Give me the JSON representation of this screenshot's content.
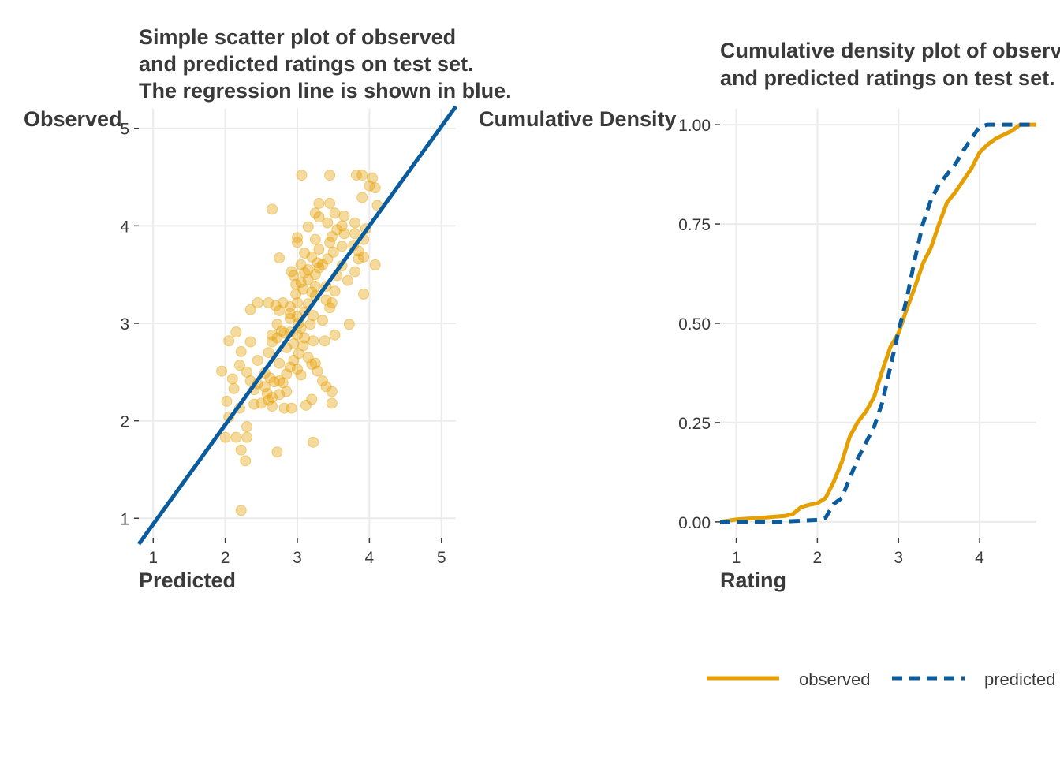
{
  "chart_data": [
    {
      "type": "scatter",
      "title_lines": [
        "Simple scatter plot of observed",
        "and predicted ratings on test set.",
        "The regression line is shown in blue."
      ],
      "xlabel": "Predicted",
      "ylabel": "Observed",
      "xlim": [
        0.8,
        5.2
      ],
      "ylim": [
        0.8,
        5.2
      ],
      "x_ticks": [
        1,
        2,
        3,
        4,
        5
      ],
      "y_ticks": [
        1,
        2,
        3,
        4,
        5
      ],
      "x_tick_labels": [
        "1",
        "2",
        "3",
        "4",
        "5"
      ],
      "y_tick_labels": [
        "1",
        "2",
        "3",
        "4",
        "5"
      ],
      "grid": true,
      "point_color": "#E69F00",
      "regression_color": "#0B5C9E",
      "regression_line": {
        "intercept": -0.08,
        "slope": 1.02
      },
      "points": [
        [
          3.06,
          4.52
        ],
        [
          3.45,
          4.52
        ],
        [
          3.82,
          4.52
        ],
        [
          3.9,
          4.52
        ],
        [
          4.04,
          4.49
        ],
        [
          4.0,
          4.41
        ],
        [
          4.08,
          4.39
        ],
        [
          3.3,
          4.23
        ],
        [
          3.45,
          4.23
        ],
        [
          3.9,
          4.29
        ],
        [
          2.65,
          4.17
        ],
        [
          4.11,
          4.21
        ],
        [
          3.25,
          4.13
        ],
        [
          3.52,
          4.13
        ],
        [
          3.65,
          4.1
        ],
        [
          3.3,
          4.09
        ],
        [
          3.62,
          4.0
        ],
        [
          3.42,
          4.03
        ],
        [
          3.8,
          4.03
        ],
        [
          3.15,
          3.99
        ],
        [
          3.95,
          3.97
        ],
        [
          3.55,
          3.96
        ],
        [
          3.0,
          3.88
        ],
        [
          3.65,
          3.92
        ],
        [
          3.8,
          3.92
        ],
        [
          3.48,
          3.89
        ],
        [
          3.25,
          3.86
        ],
        [
          3.0,
          3.83
        ],
        [
          3.92,
          3.86
        ],
        [
          3.45,
          3.83
        ],
        [
          3.62,
          3.79
        ],
        [
          3.3,
          3.76
        ],
        [
          3.78,
          3.8
        ],
        [
          3.1,
          3.72
        ],
        [
          3.5,
          3.73
        ],
        [
          3.85,
          3.74
        ],
        [
          2.75,
          3.67
        ],
        [
          3.2,
          3.68
        ],
        [
          3.42,
          3.66
        ],
        [
          3.85,
          3.66
        ],
        [
          3.92,
          3.68
        ],
        [
          3.28,
          3.62
        ],
        [
          3.05,
          3.6
        ],
        [
          3.62,
          3.59
        ],
        [
          4.08,
          3.6
        ],
        [
          3.35,
          3.6
        ],
        [
          3.3,
          3.57
        ],
        [
          3.15,
          3.55
        ],
        [
          3.1,
          3.52
        ],
        [
          2.92,
          3.53
        ],
        [
          3.8,
          3.53
        ],
        [
          3.25,
          3.5
        ],
        [
          2.95,
          3.49
        ],
        [
          3.55,
          3.49
        ],
        [
          3.15,
          3.45
        ],
        [
          3.05,
          3.42
        ],
        [
          3.7,
          3.44
        ],
        [
          2.98,
          3.4
        ],
        [
          3.25,
          3.38
        ],
        [
          3.4,
          3.38
        ],
        [
          3.08,
          3.35
        ],
        [
          3.2,
          3.32
        ],
        [
          3.52,
          3.33
        ],
        [
          3.92,
          3.3
        ],
        [
          2.98,
          3.3
        ],
        [
          3.25,
          3.28
        ],
        [
          3.4,
          3.24
        ],
        [
          2.45,
          3.21
        ],
        [
          2.6,
          3.21
        ],
        [
          2.8,
          3.21
        ],
        [
          3.0,
          3.21
        ],
        [
          3.15,
          3.2
        ],
        [
          3.48,
          3.21
        ],
        [
          2.7,
          3.18
        ],
        [
          2.9,
          3.17
        ],
        [
          3.45,
          3.16
        ],
        [
          2.35,
          3.14
        ],
        [
          2.75,
          3.13
        ],
        [
          3.1,
          3.12
        ],
        [
          2.9,
          3.1
        ],
        [
          3.22,
          3.08
        ],
        [
          3.0,
          3.07
        ],
        [
          2.9,
          3.05
        ],
        [
          3.35,
          3.03
        ],
        [
          3.02,
          3.0
        ],
        [
          2.72,
          2.99
        ],
        [
          3.18,
          2.99
        ],
        [
          3.72,
          2.99
        ],
        [
          3.05,
          2.95
        ],
        [
          2.78,
          2.92
        ],
        [
          2.15,
          2.91
        ],
        [
          2.9,
          2.91
        ],
        [
          2.82,
          2.9
        ],
        [
          2.65,
          2.88
        ],
        [
          3.0,
          2.88
        ],
        [
          3.52,
          2.88
        ],
        [
          2.72,
          2.85
        ],
        [
          3.1,
          2.85
        ],
        [
          2.05,
          2.82
        ],
        [
          2.35,
          2.81
        ],
        [
          2.65,
          2.81
        ],
        [
          3.22,
          2.82
        ],
        [
          3.38,
          2.82
        ],
        [
          2.95,
          2.79
        ],
        [
          3.08,
          2.77
        ],
        [
          2.85,
          2.75
        ],
        [
          2.22,
          2.71
        ],
        [
          2.6,
          2.7
        ],
        [
          3.02,
          2.69
        ],
        [
          3.15,
          2.65
        ],
        [
          2.45,
          2.62
        ],
        [
          2.95,
          2.62
        ],
        [
          2.75,
          2.59
        ],
        [
          3.2,
          2.58
        ],
        [
          3.25,
          2.59
        ],
        [
          2.2,
          2.57
        ],
        [
          2.9,
          2.55
        ],
        [
          3.0,
          2.53
        ],
        [
          3.28,
          2.51
        ],
        [
          1.95,
          2.51
        ],
        [
          2.3,
          2.5
        ],
        [
          2.55,
          2.49
        ],
        [
          2.85,
          2.48
        ],
        [
          3.05,
          2.47
        ],
        [
          2.62,
          2.44
        ],
        [
          2.1,
          2.43
        ],
        [
          2.35,
          2.41
        ],
        [
          2.75,
          2.41
        ],
        [
          3.35,
          2.41
        ],
        [
          2.68,
          2.4
        ],
        [
          2.8,
          2.39
        ],
        [
          2.45,
          2.38
        ],
        [
          2.55,
          2.35
        ],
        [
          3.4,
          2.35
        ],
        [
          2.12,
          2.33
        ],
        [
          2.4,
          2.32
        ],
        [
          2.85,
          2.3
        ],
        [
          3.48,
          2.3
        ],
        [
          2.58,
          2.28
        ],
        [
          2.75,
          2.27
        ],
        [
          2.65,
          2.24
        ],
        [
          3.2,
          2.22
        ],
        [
          2.6,
          2.21
        ],
        [
          2.02,
          2.2
        ],
        [
          2.5,
          2.18
        ],
        [
          3.48,
          2.18
        ],
        [
          2.4,
          2.17
        ],
        [
          3.12,
          2.16
        ],
        [
          2.65,
          2.15
        ],
        [
          2.2,
          2.13
        ],
        [
          2.82,
          2.13
        ],
        [
          2.92,
          2.13
        ],
        [
          2.05,
          2.04
        ],
        [
          2.3,
          1.94
        ],
        [
          2.0,
          1.83
        ],
        [
          2.15,
          1.83
        ],
        [
          2.3,
          1.83
        ],
        [
          3.22,
          1.78
        ],
        [
          2.22,
          1.7
        ],
        [
          2.72,
          1.68
        ],
        [
          2.28,
          1.59
        ],
        [
          2.22,
          1.08
        ]
      ]
    },
    {
      "type": "line",
      "title_lines": [
        "Cumulative density plot of observ",
        "and predicted ratings on test set."
      ],
      "xlabel": "Rating",
      "ylabel": "Cumulative Density",
      "xlim": [
        0.8,
        4.7
      ],
      "ylim": [
        -0.04,
        1.04
      ],
      "x_ticks": [
        1,
        2,
        3,
        4
      ],
      "x_tick_labels": [
        "1",
        "2",
        "3",
        "4"
      ],
      "y_ticks": [
        0,
        0.25,
        0.5,
        0.75,
        1
      ],
      "y_tick_labels": [
        "0.00",
        "0.25",
        "0.50",
        "0.75",
        "1.00"
      ],
      "grid": true,
      "legend_position": "bottom",
      "series": [
        {
          "name": "observed",
          "color": "#E69F00",
          "dash": "solid",
          "x": [
            0.8,
            1.0,
            1.3,
            1.6,
            1.7,
            1.8,
            1.9,
            2.0,
            2.1,
            2.2,
            2.3,
            2.4,
            2.5,
            2.6,
            2.7,
            2.8,
            2.9,
            3.0,
            3.1,
            3.2,
            3.3,
            3.4,
            3.5,
            3.6,
            3.7,
            3.8,
            3.9,
            4.0,
            4.1,
            4.2,
            4.3,
            4.4,
            4.5,
            4.7
          ],
          "y": [
            0.0,
            0.006,
            0.01,
            0.015,
            0.02,
            0.037,
            0.043,
            0.047,
            0.06,
            0.1,
            0.15,
            0.215,
            0.252,
            0.278,
            0.315,
            0.38,
            0.44,
            0.475,
            0.535,
            0.59,
            0.65,
            0.69,
            0.75,
            0.805,
            0.83,
            0.86,
            0.89,
            0.93,
            0.95,
            0.965,
            0.975,
            0.985,
            1.0,
            1.0
          ]
        },
        {
          "name": "predicted",
          "color": "#0B5C9E",
          "dash": "dashed",
          "x": [
            0.8,
            1.5,
            2.0,
            2.1,
            2.2,
            2.3,
            2.4,
            2.5,
            2.6,
            2.7,
            2.8,
            2.9,
            3.0,
            3.1,
            3.2,
            3.3,
            3.4,
            3.5,
            3.6,
            3.7,
            3.8,
            3.9,
            4.0,
            4.1,
            4.2,
            4.7
          ],
          "y": [
            0.0,
            0.0,
            0.005,
            0.01,
            0.045,
            0.06,
            0.11,
            0.16,
            0.2,
            0.24,
            0.3,
            0.39,
            0.48,
            0.56,
            0.66,
            0.75,
            0.81,
            0.85,
            0.875,
            0.9,
            0.935,
            0.965,
            0.995,
            1.0,
            1.0,
            1.0
          ]
        }
      ]
    }
  ]
}
